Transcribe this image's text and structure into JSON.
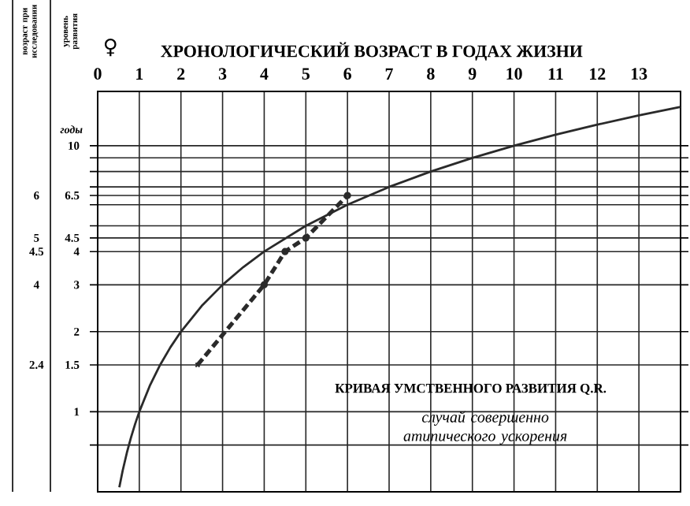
{
  "chart_data": {
    "type": "line",
    "xlabel": "ХРОНОЛОГИЧЕСКИЙ ВОЗРАСТ В ГОДАХ ЖИЗНИ",
    "ylabel": "уровень развития",
    "annotations": [
      "♀",
      "годы",
      "КРИВАЯ УМСТВЕННОГО РАЗВИТИЯ Q.R.",
      "случай совершенно атипического ускорения",
      "возраст при исследовании",
      "2.4",
      "4",
      "4.5",
      "5",
      "6"
    ],
    "log": "y",
    "xlim": [
      0,
      14
    ],
    "xticks": [
      0,
      1,
      2,
      3,
      4,
      5,
      6,
      7,
      8,
      9,
      10,
      11,
      12,
      13
    ],
    "ylim": [
      0.5,
      16
    ],
    "yticks": [
      {
        "value": 0.75,
        "label": null
      },
      1,
      1.5,
      2,
      3,
      4,
      4.5,
      {
        "value": 5,
        "label": null
      },
      {
        "value": 6,
        "label": null
      },
      6.5,
      {
        "value": 7,
        "label": null
      },
      {
        "value": 8,
        "label": null
      },
      {
        "value": 9,
        "label": null
      },
      10
    ],
    "grid": true,
    "series": [
      {
        "color": "#2a2a2a",
        "line_style": "solid",
        "marker": "none",
        "x": [
          0.52,
          0.6,
          0.7,
          0.8,
          0.9,
          1,
          1.25,
          1.5,
          1.75,
          2,
          2.5,
          3,
          3.5,
          4,
          5,
          6,
          7,
          8,
          9,
          10,
          11,
          12,
          13,
          14
        ],
        "values": [
          0.52,
          0.6,
          0.7,
          0.8,
          0.9,
          1,
          1.25,
          1.5,
          1.75,
          2,
          2.5,
          3,
          3.5,
          4,
          5,
          6,
          7,
          8,
          9,
          10,
          11,
          12,
          13,
          14
        ]
      },
      {
        "color": "#2a2a2a",
        "line_style": "dashed",
        "marker": "none",
        "x": [
          2.4,
          4,
          4.5,
          5,
          6
        ],
        "values": [
          1.5,
          3,
          4,
          4.5,
          6.5
        ]
      },
      {
        "type": "scatter",
        "color": "#2a2a2a",
        "marker": "cross",
        "x": [
          2.4
        ],
        "values": [
          1.5
        ]
      },
      {
        "type": "scatter",
        "color": "#2a2a2a",
        "marker": "circle",
        "x": [
          4,
          4.5,
          5,
          6
        ],
        "values": [
          3,
          4,
          4.5,
          6.5
        ]
      }
    ]
  }
}
